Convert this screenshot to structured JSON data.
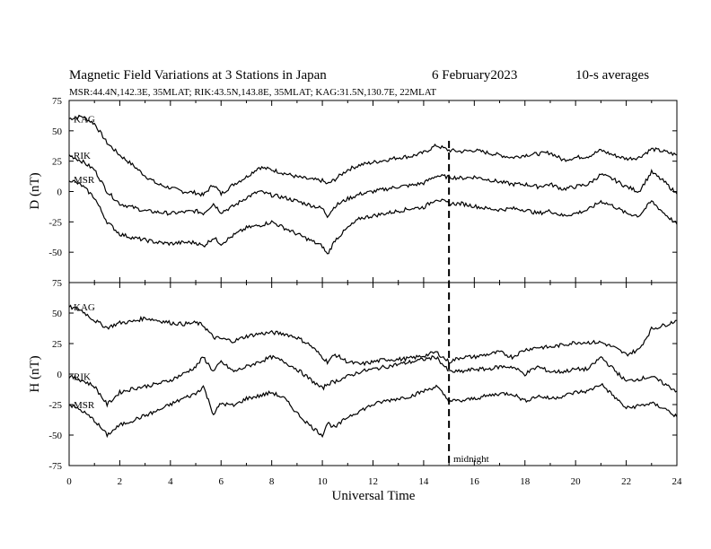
{
  "chart_data": {
    "type": "line",
    "title": {
      "main": "Magnetic Field Variations at 3 Stations in Japan",
      "date": "6   February2023",
      "averaging": "10-s averages"
    },
    "subtitle": "MSR:44.4N,142.3E, 35MLAT;  RIK:43.5N,143.8E, 35MLAT;  KAG:31.5N,130.7E, 22MLAT",
    "xlabel": "Universal Time",
    "xlim": [
      0,
      24
    ],
    "x_ticks": [
      "0",
      "2",
      "4",
      "6",
      "8",
      "10",
      "12",
      "14",
      "16",
      "18",
      "20",
      "22",
      "24"
    ],
    "annotation": {
      "label": "midnight",
      "x": 15,
      "style": "dashed vertical line"
    },
    "panels": [
      {
        "ylabel": "D (nT)",
        "ylim": [
          -75,
          75
        ],
        "y_ticks": [
          "75",
          "50",
          "25",
          "0",
          "-25",
          "-50",
          "-75"
        ],
        "series": [
          {
            "name": "KAG",
            "x": [
              0,
              0.5,
              1,
              1.5,
              2,
              2.5,
              3,
              3.5,
              4,
              4.5,
              5,
              5.3,
              5.7,
              6,
              6.5,
              7,
              7.5,
              8,
              8.5,
              9,
              9.5,
              10,
              10.2,
              10.5,
              11,
              11.5,
              12,
              12.5,
              13,
              13.5,
              14,
              14.5,
              15,
              15.5,
              16,
              16.5,
              17,
              17.5,
              18,
              18.5,
              19,
              19.5,
              20,
              20.5,
              21,
              21.5,
              22,
              22.5,
              23,
              23.5,
              24
            ],
            "values": [
              60,
              62,
              56,
              40,
              30,
              22,
              13,
              6,
              3,
              0,
              -1,
              -3,
              6,
              -2,
              6,
              12,
              20,
              18,
              15,
              12,
              10,
              9,
              6,
              10,
              18,
              22,
              24,
              26,
              28,
              29,
              32,
              38,
              34,
              33,
              34,
              32,
              30,
              28,
              30,
              31,
              32,
              26,
              28,
              29,
              34,
              30,
              27,
              28,
              35,
              33,
              30
            ]
          },
          {
            "name": "RIK",
            "x": [
              0,
              0.5,
              1,
              1.5,
              2,
              2.5,
              3,
              3.5,
              4,
              4.5,
              5,
              5.3,
              5.7,
              6,
              6.5,
              7,
              7.5,
              8,
              8.5,
              9,
              9.5,
              10,
              10.2,
              10.5,
              11,
              11.5,
              12,
              12.5,
              13,
              13.5,
              14,
              14.5,
              15,
              15.5,
              16,
              16.5,
              17,
              17.5,
              18,
              18.5,
              19,
              19.5,
              20,
              20.5,
              21,
              21.5,
              22,
              22.5,
              23,
              23.5,
              24
            ],
            "values": [
              30,
              25,
              18,
              0,
              -10,
              -13,
              -16,
              -17,
              -18,
              -17,
              -16,
              -18,
              -10,
              -17,
              -12,
              -5,
              0,
              -3,
              -5,
              -8,
              -11,
              -14,
              -20,
              -12,
              -6,
              -2,
              0,
              2,
              4,
              5,
              7,
              13,
              12,
              11,
              12,
              10,
              8,
              6,
              6,
              4,
              6,
              2,
              4,
              6,
              14,
              10,
              4,
              0,
              16,
              8,
              -2
            ]
          },
          {
            "name": "MSR",
            "x": [
              0,
              0.5,
              1,
              1.5,
              2,
              2.5,
              3,
              3.5,
              4,
              4.5,
              5,
              5.3,
              5.7,
              6,
              6.5,
              7,
              7.5,
              8,
              8.5,
              9,
              9.5,
              10,
              10.2,
              10.5,
              11,
              11.5,
              12,
              12.5,
              13,
              13.5,
              14,
              14.5,
              15,
              15.5,
              16,
              16.5,
              17,
              17.5,
              18,
              18.5,
              19,
              19.5,
              20,
              20.5,
              21,
              21.5,
              22,
              22.5,
              23,
              23.5,
              24
            ],
            "values": [
              10,
              5,
              -5,
              -25,
              -35,
              -38,
              -40,
              -42,
              -43,
              -42,
              -42,
              -45,
              -38,
              -43,
              -36,
              -30,
              -28,
              -25,
              -30,
              -35,
              -40,
              -45,
              -52,
              -40,
              -30,
              -22,
              -20,
              -18,
              -16,
              -14,
              -13,
              -6,
              -10,
              -10,
              -12,
              -14,
              -15,
              -14,
              -15,
              -18,
              -16,
              -20,
              -18,
              -15,
              -8,
              -12,
              -18,
              -20,
              -8,
              -18,
              -27
            ]
          }
        ]
      },
      {
        "ylabel": "H (nT)",
        "ylim": [
          -75,
          75
        ],
        "y_ticks": [
          "75",
          "50",
          "25",
          "0",
          "-25",
          "-50",
          "-75"
        ],
        "series": [
          {
            "name": "KAG",
            "x": [
              0,
              0.5,
              1,
              1.5,
              2,
              2.5,
              3,
              3.5,
              4,
              4.5,
              5,
              5.3,
              5.7,
              6,
              6.5,
              7,
              7.5,
              8,
              8.5,
              9,
              9.5,
              10,
              10.2,
              10.5,
              11,
              11.5,
              12,
              12.5,
              13,
              13.5,
              14,
              14.5,
              15,
              15.5,
              16,
              16.5,
              17,
              17.5,
              18,
              18.5,
              19,
              19.5,
              20,
              20.5,
              21,
              21.5,
              22,
              22.5,
              23,
              23.5,
              24
            ],
            "values": [
              55,
              52,
              44,
              38,
              42,
              43,
              46,
              44,
              42,
              41,
              42,
              40,
              30,
              29,
              27,
              31,
              33,
              34,
              33,
              30,
              24,
              14,
              10,
              16,
              10,
              8,
              10,
              12,
              12,
              13,
              15,
              18,
              10,
              14,
              14,
              16,
              18,
              14,
              20,
              22,
              22,
              24,
              26,
              26,
              26,
              22,
              16,
              20,
              37,
              40,
              44
            ]
          },
          {
            "name": "RIK",
            "x": [
              0,
              0.5,
              1,
              1.5,
              2,
              2.5,
              3,
              3.5,
              4,
              4.5,
              5,
              5.3,
              5.7,
              6,
              6.5,
              7,
              7.5,
              8,
              8.5,
              9,
              9.5,
              10,
              10.2,
              10.5,
              11,
              11.5,
              12,
              12.5,
              13,
              13.5,
              14,
              14.5,
              15,
              15.5,
              16,
              16.5,
              17,
              17.5,
              18,
              18.5,
              19,
              19.5,
              20,
              20.5,
              21,
              21.5,
              22,
              22.5,
              23,
              23.5,
              24
            ],
            "values": [
              -2,
              -5,
              -10,
              -25,
              -15,
              -12,
              -10,
              -8,
              -5,
              0,
              6,
              14,
              2,
              10,
              2,
              6,
              10,
              14,
              10,
              4,
              -4,
              -12,
              -8,
              -6,
              -2,
              2,
              4,
              6,
              8,
              10,
              12,
              14,
              2,
              2,
              4,
              4,
              6,
              6,
              0,
              6,
              2,
              2,
              4,
              4,
              14,
              4,
              -6,
              -4,
              -2,
              -8,
              -14
            ]
          },
          {
            "name": "MSR",
            "x": [
              0,
              0.5,
              1,
              1.5,
              2,
              2.5,
              3,
              3.5,
              4,
              4.5,
              5,
              5.3,
              5.7,
              6,
              6.5,
              7,
              7.5,
              8,
              8.5,
              9,
              9.5,
              10,
              10.2,
              10.5,
              11,
              11.5,
              12,
              12.5,
              13,
              13.5,
              14,
              14.5,
              15,
              15.5,
              16,
              16.5,
              17,
              17.5,
              18,
              18.5,
              19,
              19.5,
              20,
              20.5,
              21,
              21.5,
              22,
              22.5,
              23,
              23.5,
              24
            ],
            "values": [
              -25,
              -30,
              -38,
              -50,
              -42,
              -38,
              -34,
              -30,
              -25,
              -20,
              -16,
              -10,
              -33,
              -24,
              -26,
              -20,
              -18,
              -15,
              -20,
              -32,
              -42,
              -50,
              -40,
              -44,
              -35,
              -30,
              -25,
              -22,
              -20,
              -18,
              -14,
              -10,
              -22,
              -22,
              -20,
              -18,
              -16,
              -16,
              -22,
              -18,
              -20,
              -18,
              -15,
              -14,
              -8,
              -18,
              -28,
              -26,
              -24,
              -28,
              -35
            ]
          }
        ]
      }
    ]
  }
}
